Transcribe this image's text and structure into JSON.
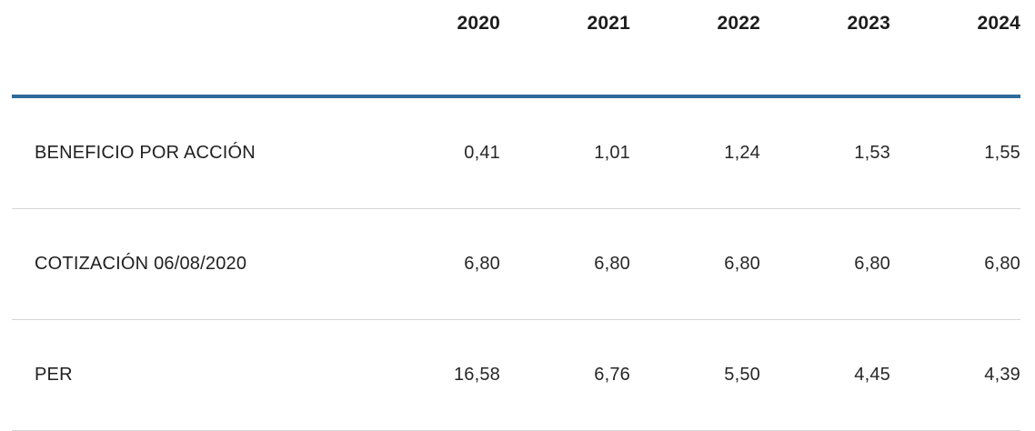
{
  "colors": {
    "header_rule": "#2e6b99",
    "row_divider": "#d6d6d6",
    "header_text": "#1d1d1d",
    "body_text": "#272727",
    "background": "#ffffff"
  },
  "table": {
    "corner_label": "",
    "years": [
      "2020",
      "2021",
      "2022",
      "2023",
      "2024"
    ],
    "rows": [
      {
        "label": "BENEFICIO POR ACCIÓN",
        "values": [
          "0,41",
          "1,01",
          "1,24",
          "1,53",
          "1,55"
        ]
      },
      {
        "label": "COTIZACIÓN 06/08/2020",
        "values": [
          "6,80",
          "6,80",
          "6,80",
          "6,80",
          "6,80"
        ]
      },
      {
        "label": "PER",
        "values": [
          "16,58",
          "6,76",
          "5,50",
          "4,45",
          "4,39"
        ]
      }
    ]
  },
  "chart_data": {
    "type": "table",
    "columns": [
      "",
      "2020",
      "2021",
      "2022",
      "2023",
      "2024"
    ],
    "rows": [
      [
        "BENEFICIO POR ACCIÓN",
        0.41,
        1.01,
        1.24,
        1.53,
        1.55
      ],
      [
        "COTIZACIÓN 06/08/2020",
        6.8,
        6.8,
        6.8,
        6.8,
        6.8
      ],
      [
        "PER",
        16.58,
        6.76,
        5.5,
        4.45,
        4.39
      ]
    ],
    "notes": "Decimal comma (Spanish locale) shown in UI; values right-aligned under year headers"
  }
}
